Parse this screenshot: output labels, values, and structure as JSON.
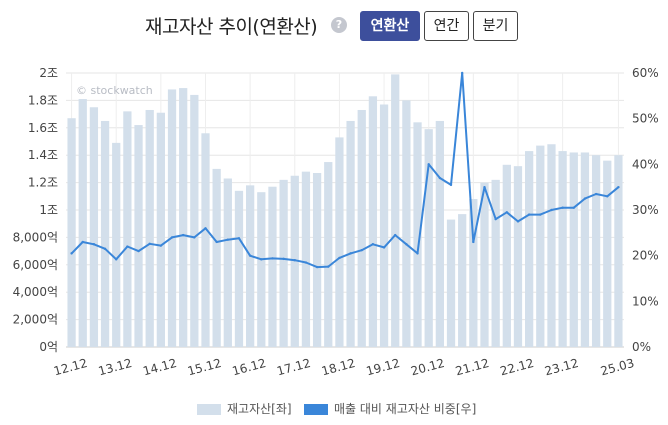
{
  "header": {
    "title": "재고자산 추이(연환산)",
    "help_label": "?",
    "buttons": [
      {
        "label": "연환산",
        "active": true
      },
      {
        "label": "연간",
        "active": false
      },
      {
        "label": "분기",
        "active": false
      }
    ]
  },
  "watermark": "© stockwatch",
  "legend": {
    "bar_label": "재고자산[좌]",
    "line_label": "매출 대비 재고자산 비중[우]"
  },
  "colors": {
    "bar": "#d3dfeb",
    "line": "#3a86d9",
    "active_button": "#3d4f9c"
  },
  "chart_data": {
    "type": "bar",
    "left_axis": {
      "ticks": [
        0,
        2000,
        4000,
        6000,
        8000,
        10000,
        12000,
        14000,
        16000,
        18000,
        20000
      ],
      "tick_labels": [
        "0억",
        "2,000억",
        "4,000억",
        "6,000억",
        "8,000억",
        "1조",
        "1.2조",
        "1.4조",
        "1.6조",
        "1.8조",
        "2조"
      ],
      "ylim": [
        0,
        20000
      ],
      "unit": "억"
    },
    "right_axis": {
      "ticks": [
        0,
        10,
        20,
        30,
        40,
        50,
        60
      ],
      "tick_labels": [
        "0%",
        "10%",
        "20%",
        "30%",
        "40%",
        "50%",
        "60%"
      ],
      "ylim": [
        0,
        60
      ],
      "unit": "%"
    },
    "x_tick_labels": [
      "12.12",
      "13.12",
      "14.12",
      "15.12",
      "16.12",
      "17.12",
      "18.12",
      "19.12",
      "20.12",
      "21.12",
      "22.12",
      "23.12",
      "25.03"
    ],
    "x_tick_index": [
      0,
      4,
      8,
      12,
      16,
      20,
      24,
      28,
      32,
      36,
      40,
      44,
      49
    ],
    "grid": true,
    "legend_position": "bottom",
    "series": [
      {
        "name": "재고자산[좌]",
        "type": "bar",
        "axis": "left",
        "values": [
          16700,
          18100,
          17500,
          16500,
          14900,
          17200,
          16200,
          17300,
          17100,
          18800,
          18900,
          18400,
          15600,
          13000,
          12300,
          11400,
          11800,
          11300,
          11700,
          12200,
          12500,
          12800,
          12700,
          13500,
          15300,
          16500,
          17300,
          18300,
          17700,
          19900,
          18000,
          16400,
          15900,
          16500,
          9300,
          9700,
          10800,
          12000,
          12200,
          13300,
          13200,
          14300,
          14700,
          14800,
          14300,
          14200,
          14200,
          14000,
          13600,
          14000
        ]
      },
      {
        "name": "매출 대비 재고자산 비중[우]",
        "type": "line",
        "axis": "right",
        "values": [
          20.5,
          23.0,
          22.5,
          21.5,
          19.2,
          22.0,
          21.0,
          22.6,
          22.2,
          24.0,
          24.5,
          24.0,
          26.0,
          23.0,
          23.5,
          23.8,
          20.0,
          19.2,
          19.4,
          19.3,
          19.0,
          18.5,
          17.5,
          17.6,
          19.5,
          20.5,
          21.2,
          22.5,
          21.8,
          24.5,
          22.5,
          20.5,
          40.0,
          37.0,
          35.5,
          60.0,
          23.0,
          35.0,
          28.0,
          29.5,
          27.5,
          29.0,
          29.0,
          30.0,
          30.5,
          30.5,
          32.5,
          33.5,
          33.0,
          35.0
        ]
      }
    ]
  }
}
